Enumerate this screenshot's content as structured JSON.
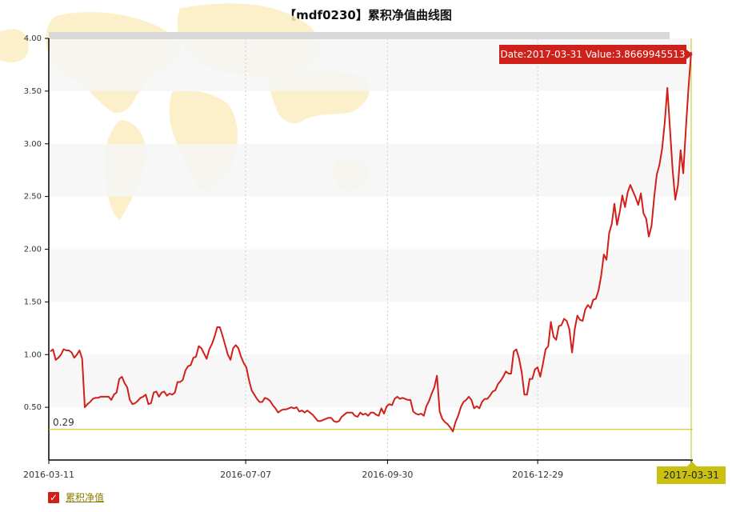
{
  "chart_data": {
    "type": "line",
    "title": "【mdf0230】累积净值曲线图",
    "xlabel": "",
    "ylabel": "",
    "ylim": [
      0,
      4.0
    ],
    "y_ticks": [
      "0.50",
      "1.00",
      "1.50",
      "2.00",
      "2.50",
      "3.00",
      "3.50",
      "4.00"
    ],
    "x_ticks": [
      "2016-03-11",
      "2016-07-07",
      "2016-09-30",
      "2016-12-29",
      "2017-03-31"
    ],
    "x_start": "2016-03-11",
    "x_end": "2017-03-31",
    "grid": true,
    "legend_position": "bottom-left",
    "reference_line": {
      "value": 0.29,
      "label": "0.29"
    },
    "tooltip": {
      "date": "2017-03-31",
      "value": "3.8669945513",
      "text": "Date:2017-03-31  Value:3.8669945513"
    },
    "series": [
      {
        "name": "累积净值",
        "color": "#d0201a",
        "values": [
          1.03,
          1.05,
          0.95,
          0.97,
          1.0,
          1.05,
          1.04,
          1.04,
          1.02,
          0.97,
          1.0,
          1.04,
          0.96,
          0.5,
          0.53,
          0.55,
          0.58,
          0.59,
          0.59,
          0.6,
          0.6,
          0.6,
          0.6,
          0.57,
          0.62,
          0.64,
          0.77,
          0.79,
          0.73,
          0.69,
          0.57,
          0.53,
          0.54,
          0.56,
          0.59,
          0.6,
          0.62,
          0.53,
          0.54,
          0.64,
          0.65,
          0.6,
          0.64,
          0.65,
          0.61,
          0.63,
          0.62,
          0.64,
          0.74,
          0.74,
          0.76,
          0.85,
          0.89,
          0.9,
          0.97,
          0.98,
          1.08,
          1.06,
          1.01,
          0.96,
          1.05,
          1.1,
          1.17,
          1.26,
          1.26,
          1.18,
          1.09,
          1.0,
          0.95,
          1.06,
          1.09,
          1.06,
          0.98,
          0.92,
          0.88,
          0.76,
          0.66,
          0.62,
          0.58,
          0.55,
          0.55,
          0.59,
          0.58,
          0.56,
          0.52,
          0.49,
          0.45,
          0.47,
          0.48,
          0.48,
          0.49,
          0.5,
          0.49,
          0.5,
          0.46,
          0.47,
          0.45,
          0.47,
          0.45,
          0.43,
          0.4,
          0.37,
          0.37,
          0.38,
          0.39,
          0.4,
          0.4,
          0.37,
          0.36,
          0.37,
          0.41,
          0.43,
          0.45,
          0.45,
          0.45,
          0.42,
          0.41,
          0.45,
          0.43,
          0.44,
          0.42,
          0.45,
          0.45,
          0.43,
          0.42,
          0.49,
          0.44,
          0.51,
          0.53,
          0.52,
          0.58,
          0.6,
          0.58,
          0.59,
          0.58,
          0.57,
          0.57,
          0.46,
          0.44,
          0.43,
          0.44,
          0.42,
          0.51,
          0.56,
          0.63,
          0.69,
          0.8,
          0.46,
          0.39,
          0.36,
          0.34,
          0.31,
          0.27,
          0.36,
          0.42,
          0.5,
          0.55,
          0.57,
          0.6,
          0.57,
          0.49,
          0.51,
          0.49,
          0.55,
          0.58,
          0.58,
          0.61,
          0.65,
          0.66,
          0.72,
          0.75,
          0.79,
          0.84,
          0.82,
          0.82,
          1.03,
          1.05,
          0.96,
          0.83,
          0.62,
          0.62,
          0.77,
          0.77,
          0.86,
          0.88,
          0.79,
          0.91,
          1.05,
          1.08,
          1.31,
          1.17,
          1.14,
          1.27,
          1.28,
          1.34,
          1.32,
          1.24,
          1.02,
          1.24,
          1.37,
          1.33,
          1.32,
          1.43,
          1.47,
          1.44,
          1.52,
          1.53,
          1.61,
          1.75,
          1.95,
          1.9,
          2.15,
          2.24,
          2.43,
          2.23,
          2.35,
          2.51,
          2.4,
          2.54,
          2.61,
          2.55,
          2.49,
          2.42,
          2.53,
          2.34,
          2.29,
          2.12,
          2.22,
          2.49,
          2.71,
          2.8,
          2.95,
          3.2,
          3.53,
          3.14,
          2.75,
          2.47,
          2.61,
          2.94,
          2.72,
          3.15,
          3.54,
          3.87
        ]
      }
    ],
    "colors": {
      "line": "#d0201a",
      "reference": "#c9c010",
      "axis": "#000000",
      "band": "#f6f6f6"
    }
  }
}
